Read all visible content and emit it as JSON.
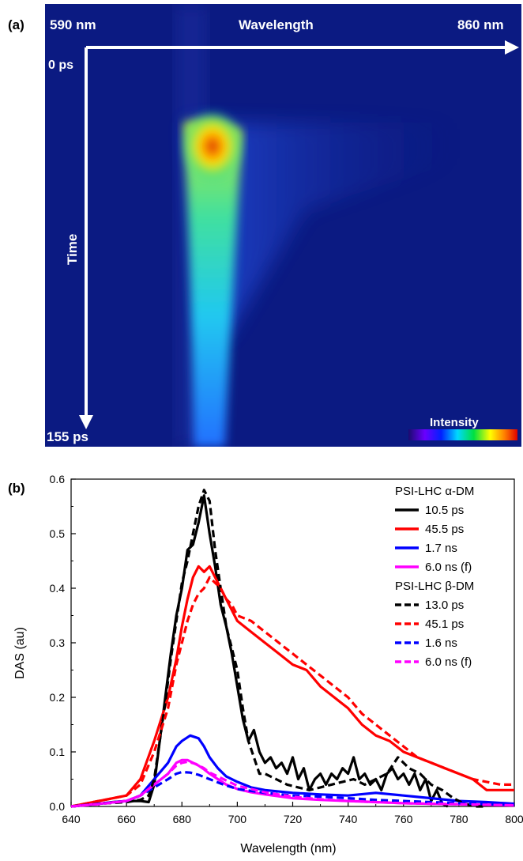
{
  "panels": {
    "a_label": "(a)",
    "b_label": "(b)"
  },
  "streak": {
    "wl_start": "590 nm",
    "wl_label": "Wavelength",
    "wl_end": "860 nm",
    "time_start": "0 ps",
    "time_label": "Time",
    "time_end": "155 ps",
    "intensity_label": "Intensity",
    "colors": {
      "background": "#0b1a82",
      "hot": "#c0150a",
      "mid": "#ffe800",
      "cool": "#22d8e0"
    }
  },
  "chart_data": {
    "type": "line",
    "xlabel": "Wavelength (nm)",
    "ylabel": "DAS (au)",
    "xlim": [
      640,
      800
    ],
    "ylim": [
      0.0,
      0.6
    ],
    "xticks": [
      640,
      660,
      680,
      700,
      720,
      740,
      760,
      780,
      800
    ],
    "yticks": [
      0.0,
      0.1,
      0.2,
      0.3,
      0.4,
      0.5,
      0.6
    ],
    "legend_position": "top-right",
    "legend_groups": [
      "PSI-LHC α-DM",
      "PSI-LHC β-DM"
    ],
    "series": [
      {
        "name": "10.5 ps",
        "group": 0,
        "color": "#000000",
        "dash": false,
        "x": [
          640,
          650,
          655,
          660,
          665,
          668,
          670,
          672,
          674,
          676,
          678,
          680,
          682,
          684,
          686,
          688,
          690,
          692,
          694,
          696,
          698,
          700,
          702,
          704,
          706,
          708,
          710,
          712,
          714,
          716,
          718,
          720,
          722,
          724,
          726,
          728,
          730,
          732,
          734,
          736,
          738,
          740,
          742,
          744,
          746,
          748,
          750,
          752,
          754,
          756,
          758,
          760,
          762,
          764,
          766,
          768,
          770,
          772,
          774,
          776
        ],
        "y": [
          0.0,
          0.005,
          0.008,
          0.01,
          0.01,
          0.008,
          0.04,
          0.12,
          0.2,
          0.28,
          0.35,
          0.4,
          0.47,
          0.48,
          0.52,
          0.57,
          0.5,
          0.44,
          0.37,
          0.33,
          0.28,
          0.22,
          0.16,
          0.12,
          0.14,
          0.1,
          0.08,
          0.09,
          0.07,
          0.08,
          0.06,
          0.09,
          0.05,
          0.07,
          0.03,
          0.05,
          0.06,
          0.04,
          0.06,
          0.05,
          0.07,
          0.06,
          0.09,
          0.05,
          0.06,
          0.04,
          0.05,
          0.03,
          0.06,
          0.07,
          0.05,
          0.06,
          0.04,
          0.06,
          0.03,
          0.05,
          0.01,
          0.03,
          0.005,
          0.0
        ]
      },
      {
        "name": "45.5 ps",
        "group": 0,
        "color": "#ff0000",
        "dash": false,
        "x": [
          640,
          650,
          660,
          665,
          670,
          675,
          678,
          680,
          682,
          684,
          686,
          688,
          690,
          692,
          694,
          696,
          698,
          700,
          705,
          710,
          715,
          720,
          725,
          730,
          735,
          740,
          745,
          750,
          755,
          760,
          765,
          770,
          775,
          780,
          785,
          790,
          795,
          800
        ],
        "y": [
          0.0,
          0.01,
          0.02,
          0.05,
          0.12,
          0.2,
          0.27,
          0.33,
          0.38,
          0.42,
          0.44,
          0.43,
          0.44,
          0.42,
          0.4,
          0.38,
          0.36,
          0.34,
          0.32,
          0.3,
          0.28,
          0.26,
          0.25,
          0.22,
          0.2,
          0.18,
          0.15,
          0.13,
          0.12,
          0.1,
          0.09,
          0.08,
          0.07,
          0.06,
          0.05,
          0.03,
          0.03,
          0.03
        ]
      },
      {
        "name": "1.7 ns",
        "group": 0,
        "color": "#0000ff",
        "dash": false,
        "x": [
          640,
          650,
          660,
          665,
          670,
          675,
          678,
          680,
          683,
          686,
          688,
          690,
          693,
          696,
          700,
          705,
          710,
          720,
          730,
          740,
          750,
          760,
          770,
          780,
          790,
          800
        ],
        "y": [
          0.0,
          0.005,
          0.01,
          0.02,
          0.05,
          0.08,
          0.11,
          0.12,
          0.13,
          0.125,
          0.11,
          0.09,
          0.07,
          0.055,
          0.045,
          0.035,
          0.03,
          0.025,
          0.022,
          0.02,
          0.025,
          0.02,
          0.015,
          0.01,
          0.008,
          0.005
        ]
      },
      {
        "name": "6.0 ns (f)",
        "group": 0,
        "color": "#ff00ff",
        "dash": false,
        "x": [
          640,
          650,
          660,
          665,
          670,
          675,
          678,
          680,
          682,
          684,
          686,
          688,
          690,
          693,
          696,
          700,
          705,
          710,
          720,
          730,
          740,
          750,
          760,
          770,
          780,
          790,
          800
        ],
        "y": [
          0.0,
          0.005,
          0.01,
          0.02,
          0.04,
          0.06,
          0.08,
          0.085,
          0.085,
          0.08,
          0.075,
          0.068,
          0.06,
          0.05,
          0.04,
          0.032,
          0.026,
          0.022,
          0.015,
          0.012,
          0.01,
          0.008,
          0.006,
          0.005,
          0.004,
          0.003,
          0.002
        ]
      },
      {
        "name": "13.0 ps",
        "group": 1,
        "color": "#000000",
        "dash": true,
        "x": [
          640,
          650,
          660,
          665,
          668,
          670,
          672,
          674,
          676,
          678,
          680,
          682,
          684,
          686,
          688,
          690,
          692,
          694,
          696,
          698,
          700,
          702,
          704,
          706,
          708,
          710,
          714,
          718,
          722,
          726,
          730,
          734,
          738,
          742,
          746,
          750,
          754,
          758,
          762,
          766,
          770,
          774,
          778,
          782,
          786,
          790
        ],
        "y": [
          0.0,
          0.005,
          0.008,
          0.012,
          0.02,
          0.05,
          0.12,
          0.19,
          0.27,
          0.34,
          0.41,
          0.45,
          0.5,
          0.55,
          0.58,
          0.56,
          0.47,
          0.4,
          0.33,
          0.29,
          0.25,
          0.18,
          0.12,
          0.09,
          0.06,
          0.06,
          0.05,
          0.04,
          0.035,
          0.03,
          0.035,
          0.04,
          0.045,
          0.05,
          0.04,
          0.05,
          0.06,
          0.09,
          0.07,
          0.06,
          0.04,
          0.03,
          0.015,
          0.005,
          0.0,
          0.0
        ]
      },
      {
        "name": "45.1 ps",
        "group": 1,
        "color": "#ff0000",
        "dash": true,
        "x": [
          640,
          650,
          660,
          665,
          670,
          675,
          678,
          680,
          682,
          684,
          686,
          688,
          690,
          692,
          694,
          696,
          698,
          700,
          705,
          710,
          715,
          720,
          725,
          730,
          735,
          740,
          745,
          750,
          755,
          760,
          765,
          770,
          775,
          780,
          785,
          790,
          795,
          800
        ],
        "y": [
          0.0,
          0.01,
          0.02,
          0.04,
          0.1,
          0.18,
          0.26,
          0.3,
          0.34,
          0.37,
          0.39,
          0.4,
          0.42,
          0.41,
          0.4,
          0.38,
          0.37,
          0.35,
          0.34,
          0.32,
          0.3,
          0.28,
          0.26,
          0.24,
          0.22,
          0.2,
          0.17,
          0.15,
          0.13,
          0.11,
          0.09,
          0.08,
          0.07,
          0.06,
          0.05,
          0.045,
          0.04,
          0.04
        ]
      },
      {
        "name": "1.6 ns",
        "group": 1,
        "color": "#0000ff",
        "dash": true,
        "x": [
          640,
          650,
          660,
          665,
          670,
          675,
          678,
          680,
          683,
          686,
          690,
          695,
          700,
          710,
          720,
          730,
          740,
          750,
          760,
          770,
          780,
          790,
          800
        ],
        "y": [
          0.0,
          0.005,
          0.01,
          0.02,
          0.035,
          0.05,
          0.06,
          0.063,
          0.062,
          0.058,
          0.05,
          0.04,
          0.032,
          0.025,
          0.02,
          0.018,
          0.015,
          0.012,
          0.01,
          0.008,
          0.006,
          0.004,
          0.003
        ]
      },
      {
        "name": "6.0 ns (f)",
        "group": 1,
        "color": "#ff00ff",
        "dash": true,
        "x": [
          640,
          650,
          660,
          665,
          670,
          675,
          678,
          680,
          682,
          685,
          688,
          690,
          695,
          700,
          710,
          720,
          730,
          740,
          750,
          760,
          770,
          780,
          790,
          800
        ],
        "y": [
          0.0,
          0.004,
          0.01,
          0.02,
          0.04,
          0.06,
          0.075,
          0.08,
          0.082,
          0.078,
          0.07,
          0.062,
          0.05,
          0.038,
          0.026,
          0.018,
          0.013,
          0.01,
          0.008,
          0.006,
          0.005,
          0.004,
          0.003,
          0.002
        ]
      }
    ]
  }
}
